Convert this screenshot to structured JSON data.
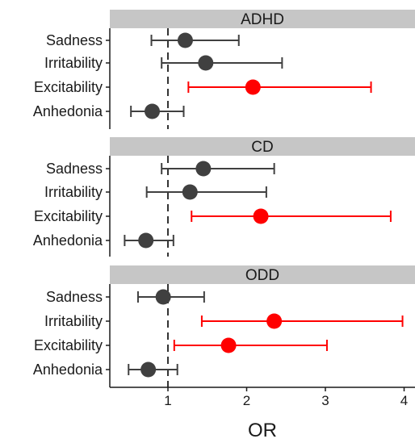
{
  "chart_data": {
    "type": "forest",
    "xlabel": "OR",
    "x_ticks": [
      1,
      2,
      3,
      4
    ],
    "xlim": [
      0.25,
      4.15
    ],
    "reference_line": 1,
    "colors": {
      "significant": "#ff0000",
      "nonsignificant": "#404040",
      "strip": "#c6c6c6",
      "refline": "#333333"
    },
    "panels": [
      {
        "title": "ADHD",
        "rows": [
          {
            "label": "Sadness",
            "or": 1.22,
            "lo": 0.79,
            "hi": 1.9,
            "significant": false
          },
          {
            "label": "Irritability",
            "or": 1.48,
            "lo": 0.92,
            "hi": 2.45,
            "significant": false
          },
          {
            "label": "Excitability",
            "or": 2.08,
            "lo": 1.26,
            "hi": 3.58,
            "significant": true
          },
          {
            "label": "Anhedonia",
            "or": 0.8,
            "lo": 0.53,
            "hi": 1.2,
            "significant": false
          }
        ]
      },
      {
        "title": "CD",
        "rows": [
          {
            "label": "Sadness",
            "or": 1.45,
            "lo": 0.92,
            "hi": 2.35,
            "significant": false
          },
          {
            "label": "Irritability",
            "or": 1.28,
            "lo": 0.73,
            "hi": 2.25,
            "significant": false
          },
          {
            "label": "Excitability",
            "or": 2.18,
            "lo": 1.3,
            "hi": 3.83,
            "significant": true
          },
          {
            "label": "Anhedonia",
            "or": 0.72,
            "lo": 0.45,
            "hi": 1.07,
            "significant": false
          }
        ]
      },
      {
        "title": "ODD",
        "rows": [
          {
            "label": "Sadness",
            "or": 0.94,
            "lo": 0.62,
            "hi": 1.46,
            "significant": false
          },
          {
            "label": "Irritability",
            "or": 2.35,
            "lo": 1.43,
            "hi": 3.98,
            "significant": true
          },
          {
            "label": "Excitability",
            "or": 1.77,
            "lo": 1.08,
            "hi": 3.02,
            "significant": true
          },
          {
            "label": "Anhedonia",
            "or": 0.75,
            "lo": 0.5,
            "hi": 1.12,
            "significant": false
          }
        ]
      }
    ]
  }
}
